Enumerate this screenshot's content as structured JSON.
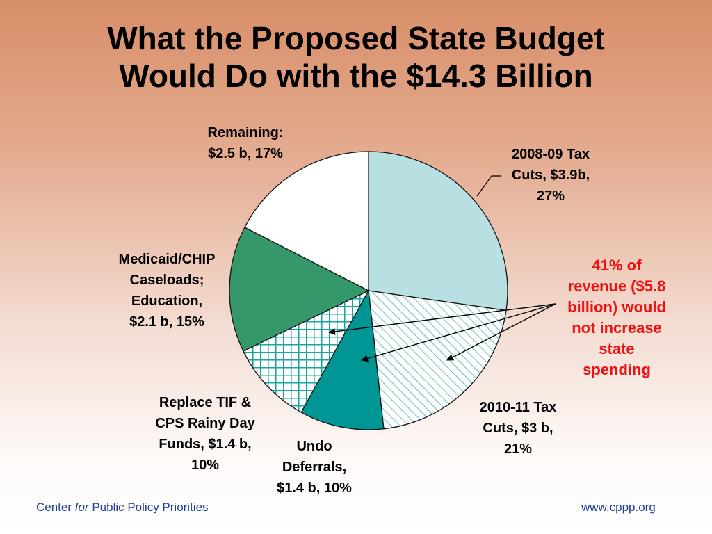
{
  "chart_data": {
    "type": "pie",
    "title_lines": [
      "What the Proposed State Budget",
      "Would Do with the $14.3 Billion"
    ],
    "slices": [
      {
        "name": "2008-09 Tax Cuts",
        "value": 3.9,
        "percent": 27,
        "color": "#b8dfe2",
        "pattern": "solid",
        "label_lines": [
          "2008-09 Tax",
          "Cuts, $3.9b,",
          "27%"
        ]
      },
      {
        "name": "2010-11 Tax Cuts",
        "value": 3.0,
        "percent": 21,
        "color": "#7cc6c6",
        "pattern": "diagonal",
        "label_lines": [
          "2010-11 Tax",
          "Cuts, $3 b,",
          "21%"
        ]
      },
      {
        "name": "Undo Deferrals",
        "value": 1.4,
        "percent": 10,
        "color": "#009696",
        "pattern": "solid",
        "label_lines": [
          "Undo",
          "Deferrals,",
          "$1.4 b, 10%"
        ]
      },
      {
        "name": "Replace TIF & CPS Rainy Day Funds",
        "value": 1.4,
        "percent": 10,
        "color": "#1aa6a0",
        "pattern": "grid",
        "label_lines": [
          "Replace TIF &",
          "CPS Rainy Day",
          "Funds, $1.4 b,",
          "10%"
        ]
      },
      {
        "name": "Medicaid/CHIP Caseloads; Education",
        "value": 2.1,
        "percent": 15,
        "color": "#35986a",
        "pattern": "solid",
        "label_lines": [
          "Medicaid/CHIP",
          "Caseloads;",
          "Education,",
          "$2.1 b, 15%"
        ]
      },
      {
        "name": "Remaining",
        "value": 2.5,
        "percent": 17,
        "color": "#ffffff",
        "pattern": "solid",
        "label_lines": [
          "Remaining:",
          "$2.5 b, 17%"
        ]
      }
    ],
    "annotation": {
      "lines": [
        "41% of",
        "revenue ($5.8",
        "billion) would",
        "not increase",
        "state",
        "spending"
      ],
      "color": "#ee1111"
    },
    "legend": "none"
  },
  "footer": {
    "left_prefix": "Center ",
    "left_italic": "for",
    "left_suffix": " Public Policy Priorities",
    "right": "www.cppp.org",
    "color": "#1f3f9a"
  }
}
